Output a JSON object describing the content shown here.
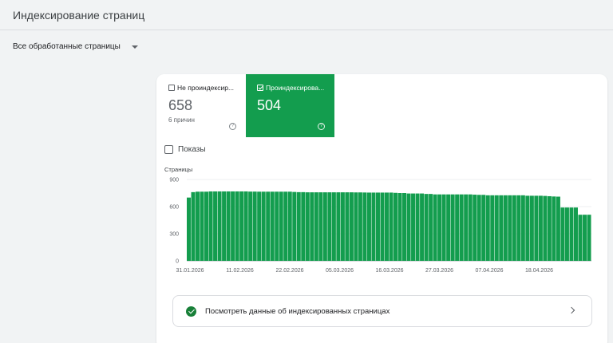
{
  "header": {
    "title": "Индексирование страниц"
  },
  "filter": {
    "label": "Все обработанные страницы"
  },
  "tiles": [
    {
      "label": "Не проиндексир...",
      "value": "658",
      "sub": "6 причин",
      "help": "?"
    },
    {
      "label": "Проиндексирова...",
      "value": "504",
      "help": "?"
    }
  ],
  "shows": {
    "label": "Показы"
  },
  "link": {
    "label": "Посмотреть данные об индексированных страницах"
  },
  "colors": {
    "accent": "#139d4e",
    "bar": "#139d4e"
  },
  "chart_data": {
    "type": "bar",
    "ylabel": "Страницы",
    "ylim": [
      0,
      900
    ],
    "yticks": [
      "0",
      "300",
      "600",
      "900"
    ],
    "grid": true,
    "xticks": [
      "31.01.2026",
      "11.02.2026",
      "22.02.2026",
      "05.03.2026",
      "16.03.2026",
      "27.03.2026",
      "07.04.2026",
      "18.04.2026"
    ],
    "values": [
      700,
      760,
      765,
      765,
      765,
      768,
      768,
      768,
      768,
      768,
      768,
      768,
      768,
      768,
      766,
      766,
      765,
      765,
      765,
      765,
      765,
      765,
      765,
      765,
      762,
      760,
      760,
      758,
      758,
      758,
      758,
      758,
      758,
      758,
      758,
      758,
      758,
      758,
      757,
      757,
      756,
      755,
      755,
      755,
      755,
      755,
      755,
      752,
      750,
      750,
      745,
      745,
      745,
      745,
      740,
      740,
      735,
      735,
      735,
      735,
      735,
      735,
      735,
      735,
      735,
      732,
      730,
      730,
      725,
      725,
      725,
      725,
      725,
      725,
      725,
      725,
      725,
      720,
      720,
      720,
      720,
      718,
      715,
      712,
      710,
      590,
      590,
      590,
      590,
      510,
      510,
      510
    ]
  }
}
